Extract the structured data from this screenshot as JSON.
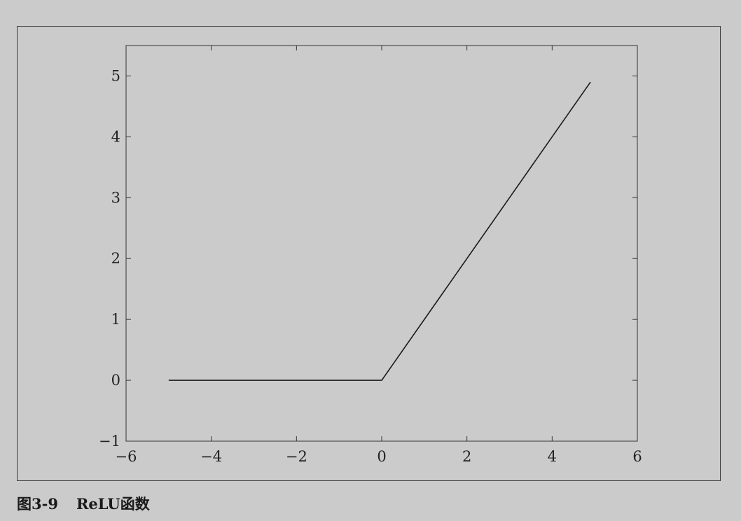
{
  "caption": {
    "figure_number": "图3-9",
    "title": "ReLU函数"
  },
  "chart_data": {
    "type": "line",
    "xlim": [
      -6,
      6
    ],
    "ylim": [
      -1,
      5.5
    ],
    "x_ticks": [
      -6,
      -4,
      -2,
      0,
      2,
      4,
      6
    ],
    "x_tick_labels": [
      "−6",
      "−4",
      "−2",
      "0",
      "2",
      "4",
      "6"
    ],
    "y_ticks": [
      -1,
      0,
      1,
      2,
      3,
      4,
      5
    ],
    "y_tick_labels": [
      "−1",
      "0",
      "1",
      "2",
      "3",
      "4",
      "5"
    ],
    "grid": false,
    "series": [
      {
        "x": [
          -5,
          0,
          4.9
        ],
        "y": [
          0,
          0,
          4.9
        ]
      }
    ],
    "colors": {
      "line": "#1a1a1a",
      "axes": "#333333"
    }
  }
}
